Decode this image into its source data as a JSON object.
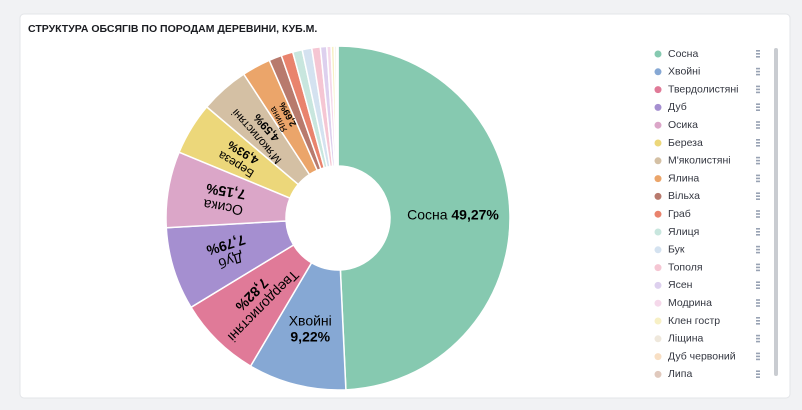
{
  "chart_data": {
    "type": "donut",
    "title": "СТРУКТУРА ОБСЯГІВ ПО ПОРОДАМ ДЕРЕВИНИ, КУБ.М.",
    "categories": [
      "Сосна",
      "Хвойні",
      "Твердолистяні",
      "Дуб",
      "Осика",
      "Береза",
      "М'яколистяні",
      "Ялина",
      "Вільха",
      "Граб",
      "Ялиця",
      "Бук",
      "Тополя",
      "Ясен",
      "Модрина",
      "Клен гостр",
      "Ліщина",
      "Дуб червоний",
      "Липа"
    ],
    "values": [
      49.27,
      9.22,
      7.82,
      7.79,
      7.15,
      4.93,
      4.59,
      2.69,
      1.2,
      1.1,
      0.9,
      0.9,
      0.8,
      0.6,
      0.4,
      0.3,
      0.2,
      0.1,
      0.04
    ],
    "value_labels": [
      "49,27%",
      "9,22%",
      "7,82%",
      "7,79%",
      "7,15%",
      "4,93%",
      "4,59%",
      "2,69%",
      null,
      null,
      null,
      null,
      null,
      null,
      null,
      null,
      null,
      null,
      null
    ],
    "colors": [
      "#86c9b0",
      "#86a8d4",
      "#e07a98",
      "#a58fd0",
      "#dba6c8",
      "#ecd77a",
      "#d4c0a4",
      "#eba56a",
      "#b87a6d",
      "#e9836d",
      "#c8e6de",
      "#d4e2f0",
      "#f5c6d3",
      "#ddd0ee",
      "#f5d8ea",
      "#f7f0c5",
      "#efe8dc",
      "#f8dfc4",
      "#e0c9bd"
    ],
    "legend": "right"
  }
}
